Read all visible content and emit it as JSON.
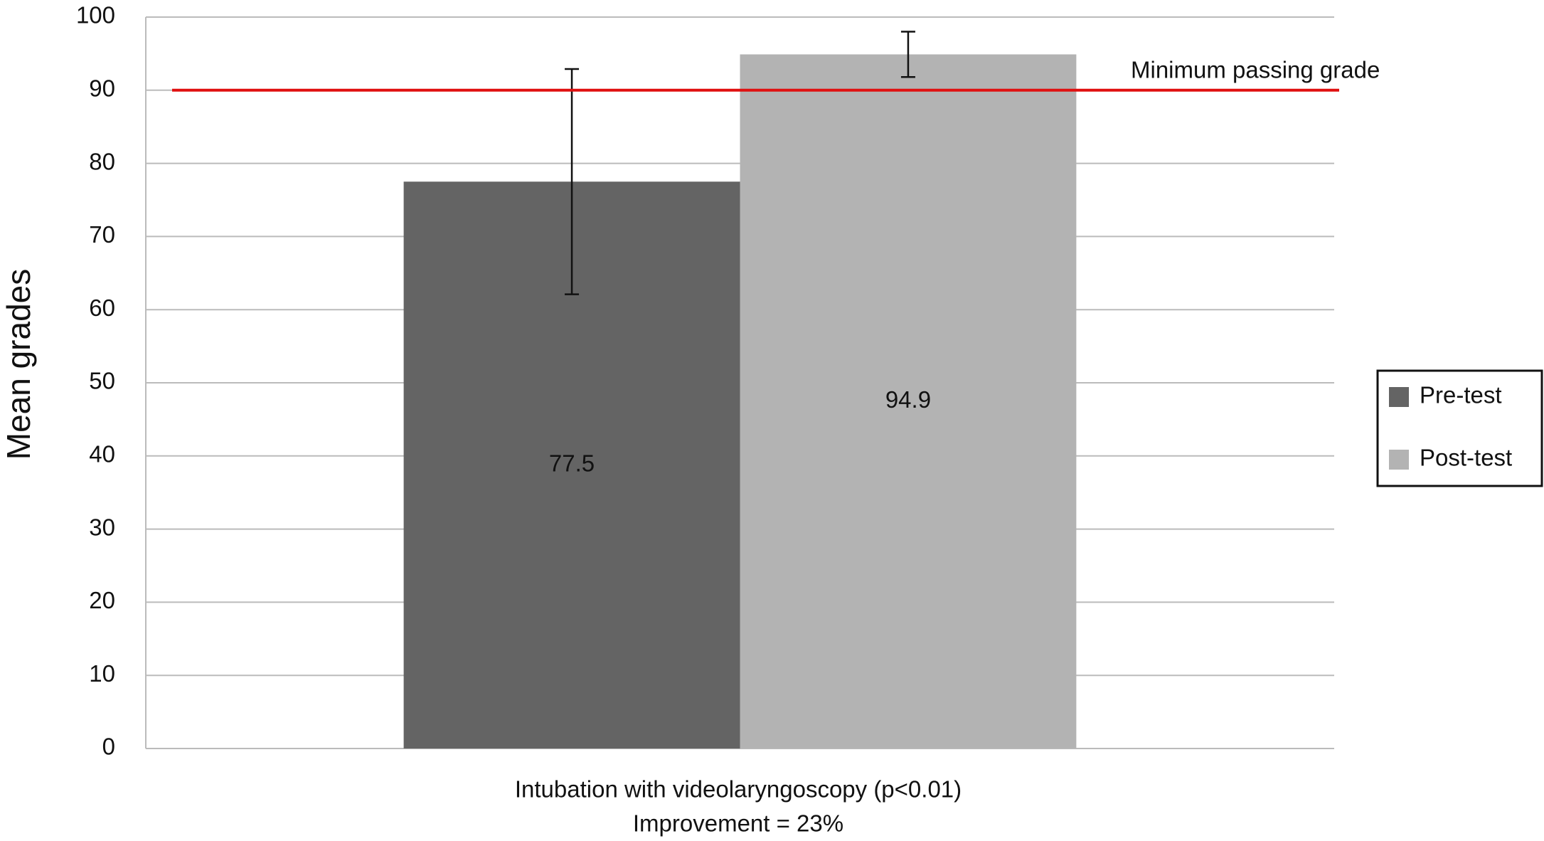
{
  "chart_data": {
    "type": "bar",
    "categories": [
      "Intubation with videolaryngoscopy (p<0.01)"
    ],
    "xlabel": "Improvement = 23%",
    "ylabel": "Mean grades",
    "series": [
      {
        "name": "Pre-test",
        "color": "#646464",
        "values": [
          77.5
        ],
        "errors": [
          15.4
        ]
      },
      {
        "name": "Post-test",
        "color": "#b3b3b3",
        "values": [
          94.9
        ],
        "errors": [
          3.1
        ]
      }
    ],
    "reference_line": {
      "value": 90,
      "label": "Minimum passing grade",
      "color": "#e01010"
    },
    "ylim": [
      0,
      100
    ],
    "yticks": [
      0,
      10,
      20,
      30,
      40,
      50,
      60,
      70,
      80,
      90,
      100
    ],
    "grid": true,
    "legend": "right"
  }
}
